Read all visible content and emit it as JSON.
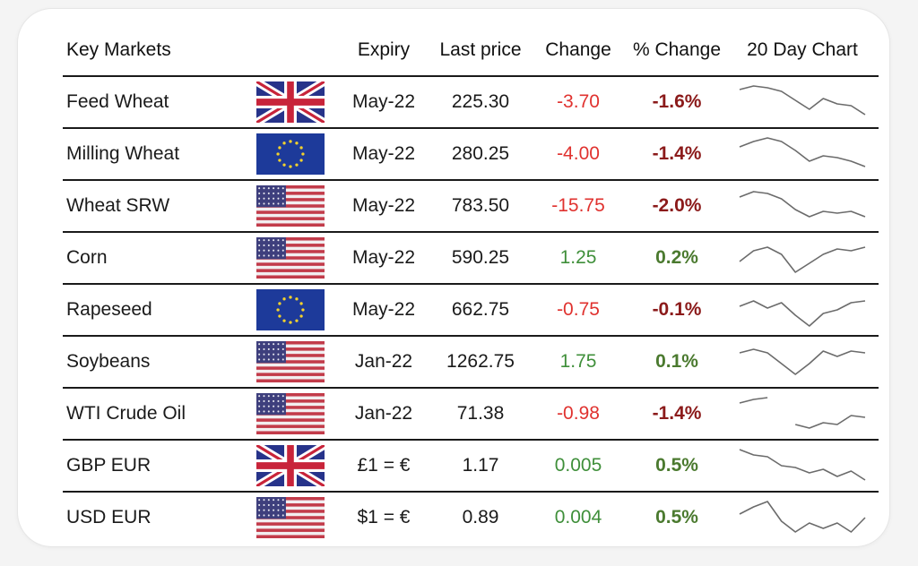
{
  "headers": {
    "name": "Key Markets",
    "expiry": "Expiry",
    "last": "Last price",
    "change": "Change",
    "pct": "% Change",
    "chart": "20 Day Chart"
  },
  "colors": {
    "negative": "#e0322f",
    "positive": "#3f8f3a",
    "pct_negative": "#8b1a1a",
    "pct_positive": "#4b7a2f"
  },
  "rows": [
    {
      "name": "Feed Wheat",
      "flag": "uk-flag-icon",
      "expiry": "May-22",
      "last": "225.30",
      "change": "-3.70",
      "pct": "-1.6%",
      "dir": "neg",
      "spark": [
        0.85,
        0.95,
        0.9,
        0.8,
        0.55,
        0.3,
        0.6,
        0.45,
        0.4,
        0.15
      ]
    },
    {
      "name": "Milling Wheat",
      "flag": "eu-flag-icon",
      "expiry": "May-22",
      "last": "280.25",
      "change": "-4.00",
      "pct": "-1.4%",
      "dir": "neg",
      "spark": [
        0.7,
        0.85,
        0.95,
        0.85,
        0.6,
        0.3,
        0.45,
        0.4,
        0.3,
        0.15
      ]
    },
    {
      "name": "Wheat SRW",
      "flag": "us-flag-icon",
      "expiry": "May-22",
      "last": "783.50",
      "change": "-15.75",
      "pct": "-2.0%",
      "dir": "neg",
      "spark": [
        0.75,
        0.9,
        0.85,
        0.7,
        0.4,
        0.2,
        0.35,
        0.3,
        0.35,
        0.2
      ]
    },
    {
      "name": "Corn",
      "flag": "us-flag-icon",
      "expiry": "May-22",
      "last": "590.25",
      "change": "1.25",
      "pct": "0.2%",
      "dir": "pos",
      "spark": [
        0.4,
        0.7,
        0.8,
        0.6,
        0.1,
        0.35,
        0.6,
        0.75,
        0.7,
        0.8
      ]
    },
    {
      "name": "Rapeseed",
      "flag": "eu-flag-icon",
      "expiry": "May-22",
      "last": "662.75",
      "change": "-0.75",
      "pct": "-0.1%",
      "dir": "neg",
      "spark": [
        0.6,
        0.75,
        0.55,
        0.7,
        0.35,
        0.05,
        0.4,
        0.5,
        0.7,
        0.75
      ]
    },
    {
      "name": "Soybeans",
      "flag": "us-flag-icon",
      "expiry": "Jan-22",
      "last": "1262.75",
      "change": "1.75",
      "pct": "0.1%",
      "dir": "pos",
      "spark": [
        0.75,
        0.85,
        0.75,
        0.45,
        0.15,
        0.45,
        0.8,
        0.65,
        0.8,
        0.75
      ]
    },
    {
      "name": "WTI Crude Oil",
      "flag": "us-flag-icon",
      "expiry": "Jan-22",
      "last": "71.38",
      "change": "-0.98",
      "pct": "-1.4%",
      "dir": "neg",
      "spark": [
        0.8,
        0.9,
        0.95,
        null,
        0.2,
        0.1,
        0.25,
        0.2,
        0.45,
        0.4
      ]
    },
    {
      "name": "GBP EUR",
      "flag": "uk-flag-icon",
      "expiry": "£1 = €",
      "last": "1.17",
      "change": "0.005",
      "pct": "0.5%",
      "dir": "pos",
      "spark": [
        0.95,
        0.8,
        0.75,
        0.5,
        0.45,
        0.3,
        0.4,
        0.2,
        0.35,
        0.1
      ]
    },
    {
      "name": "USD EUR",
      "flag": "us-flag-icon",
      "expiry": "$1 = €",
      "last": "0.89",
      "change": "0.004",
      "pct": "0.5%",
      "dir": "pos",
      "spark": [
        0.6,
        0.8,
        0.95,
        0.4,
        0.1,
        0.35,
        0.2,
        0.35,
        0.1,
        0.5
      ]
    }
  ]
}
